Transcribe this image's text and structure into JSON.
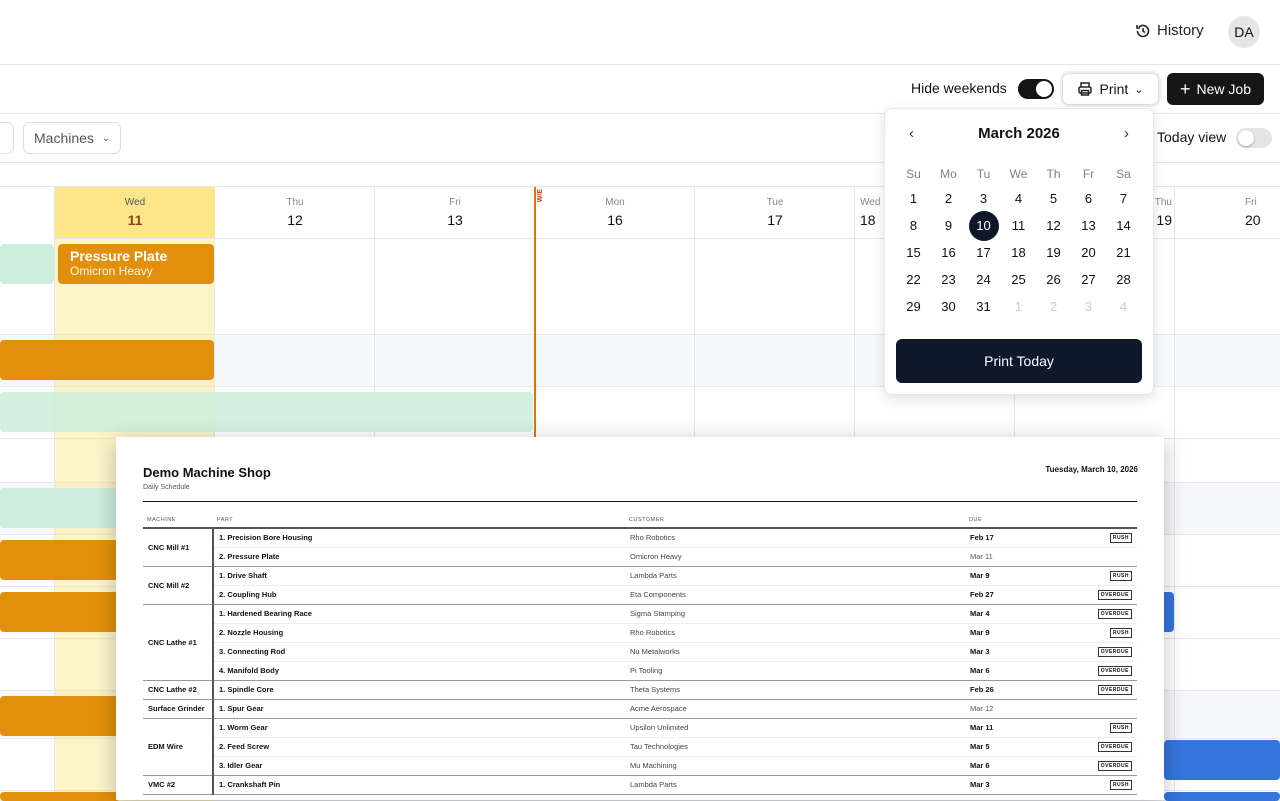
{
  "header": {
    "history_label": "History",
    "avatar_initials": "DA"
  },
  "toolbar": {
    "hide_weekends_label": "Hide weekends",
    "hide_weekends_on": true,
    "print_label": "Print",
    "new_job_label": "New Job"
  },
  "filters": {
    "machines_label": "Machines",
    "today_view_label": "Today view",
    "today_view_on": false
  },
  "days": [
    {
      "dow": "Wed",
      "num": "11",
      "today": true
    },
    {
      "dow": "Thu",
      "num": "12"
    },
    {
      "dow": "Fri",
      "num": "13"
    },
    {
      "dow": "Mon",
      "num": "16"
    },
    {
      "dow": "Tue",
      "num": "17"
    },
    {
      "dow": "Wed",
      "num": "18"
    },
    {
      "dow": "Thu",
      "num": "19"
    },
    {
      "dow": "Fri",
      "num": "20"
    }
  ],
  "weekend_marker": "W/E",
  "jobs": [
    {
      "title": "Pressure Plate",
      "customer": "Omicron Heavy"
    }
  ],
  "colors": {
    "orange": "#e2900b",
    "green": "#cdeedb",
    "blue": "#3474dc",
    "today": "#fde68a",
    "dark": "#0f172a"
  },
  "calendar": {
    "title": "March 2026",
    "dow": [
      "Su",
      "Mo",
      "Tu",
      "We",
      "Th",
      "Fr",
      "Sa"
    ],
    "days": [
      "1",
      "2",
      "3",
      "4",
      "5",
      "6",
      "7",
      "8",
      "9",
      "10",
      "11",
      "12",
      "13",
      "14",
      "15",
      "16",
      "17",
      "18",
      "19",
      "20",
      "21",
      "22",
      "23",
      "24",
      "25",
      "26",
      "27",
      "28",
      "29",
      "30",
      "31"
    ],
    "trailing": [
      "1",
      "2",
      "3",
      "4"
    ],
    "selected": "10",
    "print_today_label": "Print Today"
  },
  "print": {
    "shop": "Demo Machine Shop",
    "subtitle": "Daily Schedule",
    "date": "Tuesday, March 10, 2026",
    "columns": [
      "MACHINE",
      "PART",
      "CUSTOMER",
      "DUE"
    ],
    "groups": [
      {
        "machine": "CNC Mill #1",
        "rows": [
          [
            "1. Precision Bore Housing",
            "Rho Robotics",
            "Feb 17",
            "RUSH"
          ],
          [
            "2. Pressure Plate",
            "Omicron Heavy",
            "Mar 11",
            ""
          ]
        ]
      },
      {
        "machine": "CNC Mill #2",
        "rows": [
          [
            "1. Drive Shaft",
            "Lambda Parts",
            "Mar 9",
            "RUSH"
          ],
          [
            "2. Coupling Hub",
            "Eta Components",
            "Feb 27",
            "OVERDUE"
          ]
        ]
      },
      {
        "machine": "CNC Lathe #1",
        "rows": [
          [
            "1. Hardened Bearing Race",
            "Sigma Stamping",
            "Mar 4",
            "OVERDUE"
          ],
          [
            "2. Nozzle Housing",
            "Rho Robotics",
            "Mar 9",
            "RUSH"
          ],
          [
            "3. Connecting Rod",
            "Nu Metalworks",
            "Mar 3",
            "OVERDUE"
          ],
          [
            "4. Manifold Body",
            "Pi Tooling",
            "Mar 6",
            "OVERDUE"
          ]
        ]
      },
      {
        "machine": "CNC Lathe #2",
        "rows": [
          [
            "1. Spindle Core",
            "Theta Systems",
            "Feb 26",
            "OVERDUE"
          ]
        ]
      },
      {
        "machine": "Surface Grinder",
        "rows": [
          [
            "1. Spur Gear",
            "Acme Aerospace",
            "Mar 12",
            ""
          ]
        ]
      },
      {
        "machine": "EDM Wire",
        "rows": [
          [
            "1. Worm Gear",
            "Upsilon Unlimited",
            "Mar 11",
            "RUSH"
          ],
          [
            "2. Feed Screw",
            "Tau Technologies",
            "Mar 5",
            "OVERDUE"
          ],
          [
            "3. Idler Gear",
            "Mu Machining",
            "Mar 6",
            "OVERDUE"
          ]
        ]
      },
      {
        "machine": "VMC #2",
        "rows": [
          [
            "1. Crankshaft Pin",
            "Lambda Parts",
            "Mar 3",
            "RUSH"
          ]
        ]
      }
    ]
  }
}
